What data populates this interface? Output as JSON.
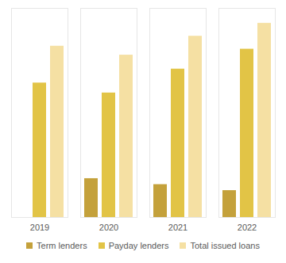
{
  "chart_data": {
    "type": "bar",
    "categories": [
      "2019",
      "2020",
      "2021",
      "2022"
    ],
    "series": [
      {
        "name": "Term lenders",
        "color": "#c4a13b",
        "values": [
          null,
          39,
          33,
          27
        ]
      },
      {
        "name": "Payday lenders",
        "color": "#e2c446",
        "values": [
          135,
          125,
          149,
          169
        ]
      },
      {
        "name": "Total issued loans",
        "color": "#f5e0a3",
        "values": [
          172,
          163,
          182,
          195
        ]
      }
    ],
    "ylim": [
      0,
      210
    ],
    "tick_labels": "x",
    "legend": "bottom"
  }
}
